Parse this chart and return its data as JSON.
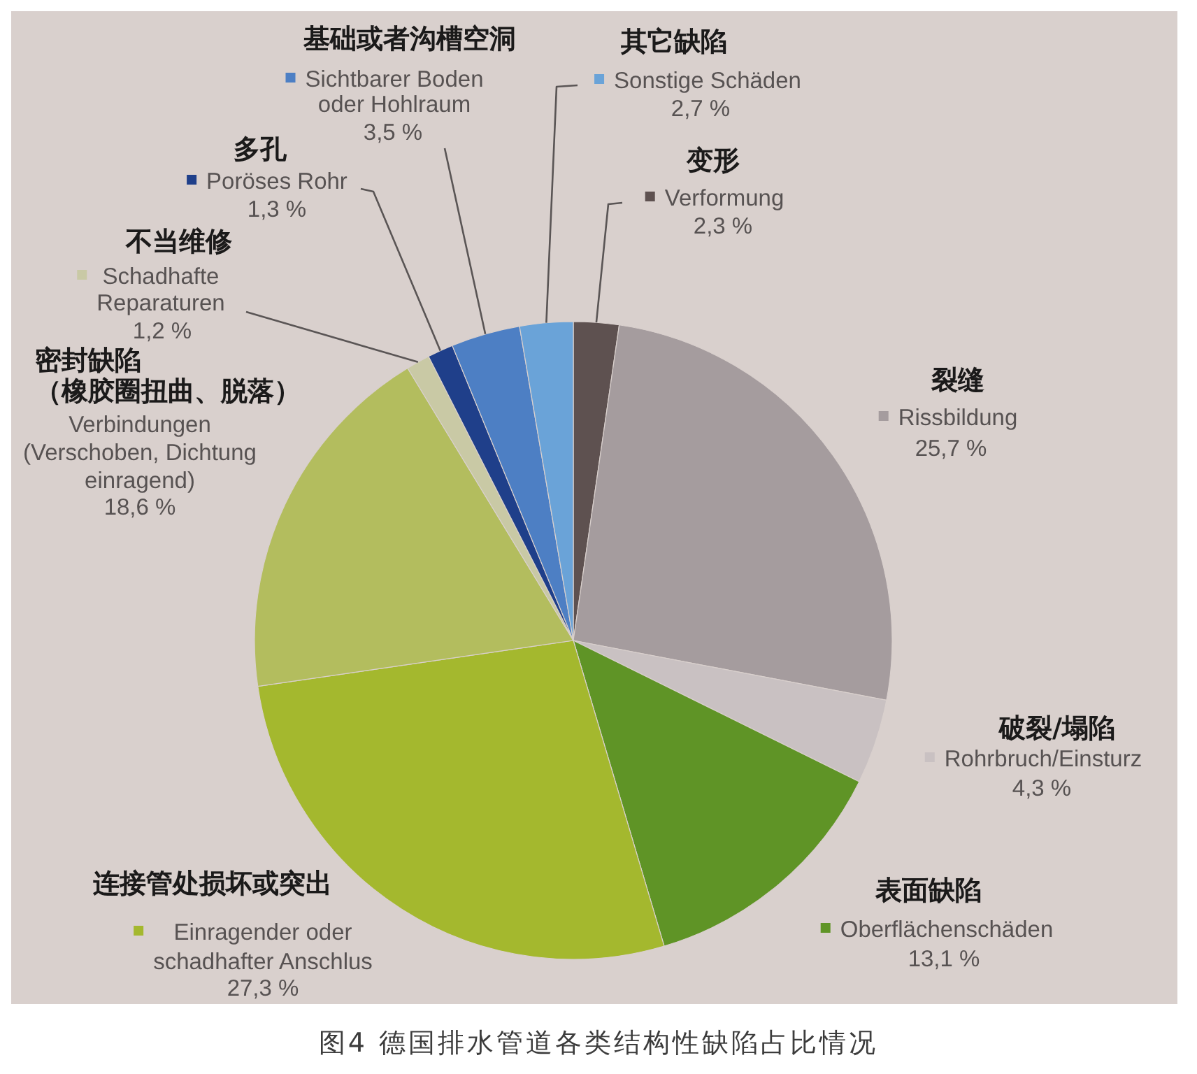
{
  "chart_data": {
    "type": "pie",
    "title": "图4 德国排水管道各类结构性缺陷占比情况",
    "categories": [
      "Verformung",
      "Rissbildung",
      "Rohrbruch/Einsturz",
      "Oberflächenschäden",
      "Einragender oder\nschadhafter Anschlus",
      "Verbindungen\n(Verschoben, Dichtung\neinragend)",
      "Schadhafte\nReparaturen",
      "Poröses Rohr",
      "Sichtbarer Boden\noder Hohlraum",
      "Sonstige Schäden"
    ],
    "values": [
      2.3,
      25.7,
      4.3,
      13.1,
      27.3,
      18.6,
      1.2,
      1.3,
      3.5,
      2.7
    ],
    "colors": [
      "#5e5150",
      "#a59c9e",
      "#c9c1c2",
      "#5f9426",
      "#a4b82e",
      "#b3bd5e",
      "#c9c9a5",
      "#1f3f8a",
      "#4d7fc4",
      "#6aa3d8"
    ],
    "value_labels": [
      "2,3 %",
      "25,7 %",
      "4,3 %",
      "13,1 %",
      "27,3 %",
      "18,6 %",
      "1,2 %",
      "1,3 %",
      "3,5 %",
      "2,7 %"
    ],
    "legend": true,
    "annotations": [
      {
        "text": "变形",
        "x": "Verformung"
      },
      {
        "text": "裂缝",
        "x": "Rissbildung"
      },
      {
        "text": "破裂/塌陷",
        "x": "Rohrbruch/Einsturz"
      },
      {
        "text": "表面缺陷",
        "x": "Oberflächenschäden"
      },
      {
        "text": "连接管处损坏或突出",
        "x": "Einragender oder\nschadhafter Anschlus"
      },
      {
        "text": "密封缺陷",
        "x": "Verbindungen\n(Verschoben, Dichtung\neinragend)"
      },
      {
        "text": "（橡胶圈扭曲、脱落）",
        "x": "Verbindungen\n(Verschoben, Dichtung\neinragend)"
      },
      {
        "text": "不当维修",
        "x": "Schadhafte\nReparaturen"
      },
      {
        "text": "多孔",
        "x": "Poröses Rohr"
      },
      {
        "text": "基础或者沟槽空洞",
        "x": "Sichtbarer Boden\noder Hohlraum"
      },
      {
        "text": "其它缺陷",
        "x": "Sonstige Schäden"
      }
    ]
  }
}
